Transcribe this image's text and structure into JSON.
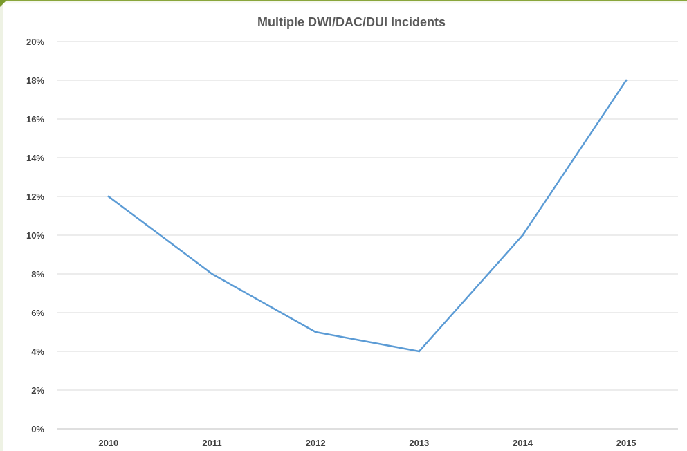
{
  "chart_data": {
    "type": "line",
    "title": "Multiple DWI/DAC/DUI Incidents",
    "xlabel": "",
    "ylabel": "",
    "categories": [
      "2010",
      "2011",
      "2012",
      "2013",
      "2014",
      "2015"
    ],
    "series": [
      {
        "values": [
          12,
          8,
          5,
          4,
          10,
          18
        ]
      }
    ],
    "ylim": [
      0,
      20
    ],
    "yticks": [
      0,
      2,
      4,
      6,
      8,
      10,
      12,
      14,
      16,
      18,
      20
    ],
    "ytick_labels": [
      "0%",
      "2%",
      "4%",
      "6%",
      "8%",
      "10%",
      "12%",
      "14%",
      "16%",
      "18%",
      "20%"
    ],
    "grid": true,
    "legend": "none",
    "colors": {
      "line": "#5b9bd5",
      "grid": "#d9d9d9",
      "axis": "#bfbfbf"
    }
  }
}
